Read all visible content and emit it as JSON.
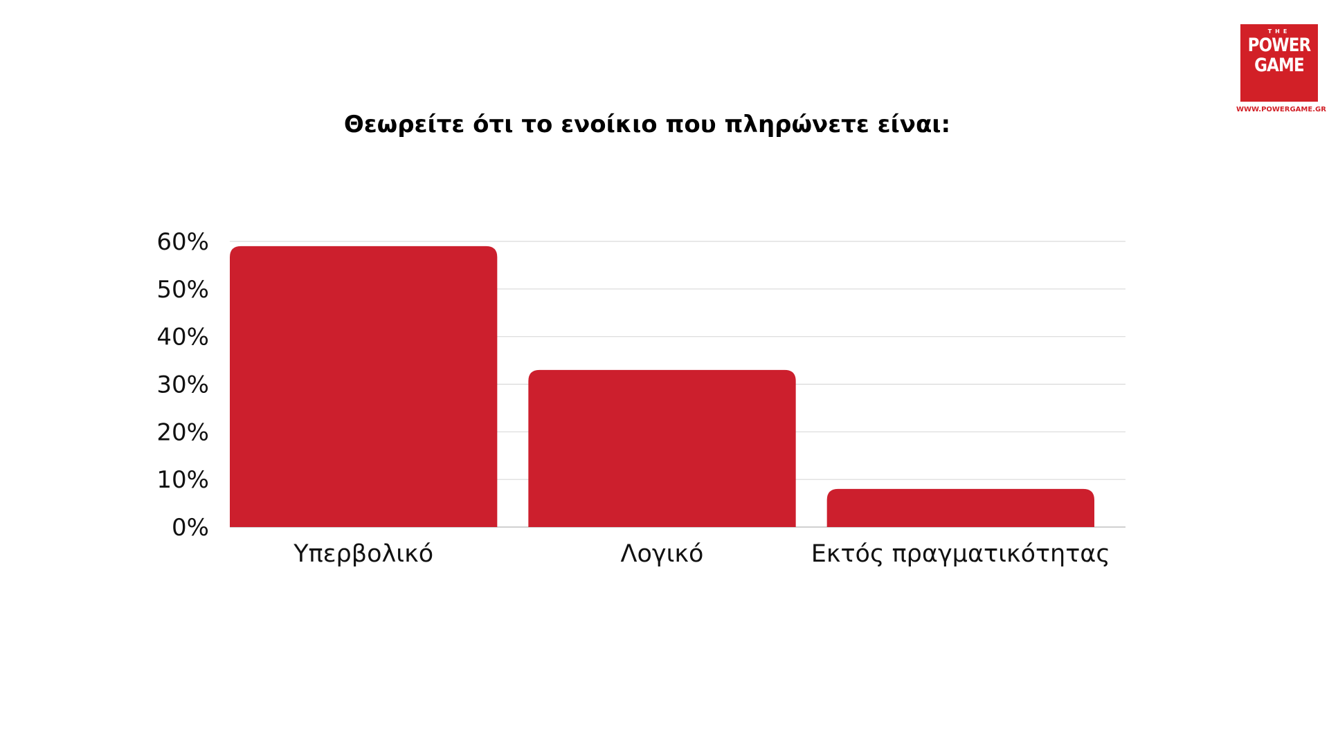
{
  "brand": {
    "logo_top": "THE",
    "logo_line1": "POWER",
    "logo_line2": "GAME",
    "url": "WWW.POWERGAME.GR",
    "color": "#d22027"
  },
  "chart_data": {
    "type": "bar",
    "title": "Θεωρείτε ότι το ενοίκιο που πληρώνετε είναι:",
    "categories": [
      "Υπερβολικό",
      "Λογικό",
      "Εκτός πραγματικότητας"
    ],
    "values": [
      59,
      33,
      8
    ],
    "ylim": [
      0,
      60
    ],
    "yticks": [
      "0%",
      "10%",
      "20%",
      "30%",
      "40%",
      "50%",
      "60%"
    ],
    "grid": true,
    "bar_color": "#cc1f2d",
    "xlabel": "",
    "ylabel": ""
  }
}
